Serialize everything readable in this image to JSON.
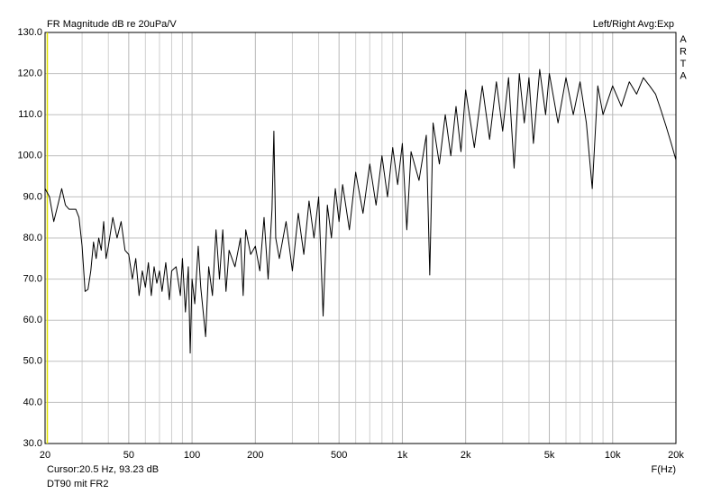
{
  "chart_data": {
    "type": "line",
    "title": "FR Magnitude dB re 20uPa/V",
    "mode_label": "Left/Right  Avg:Exp",
    "side_letters": [
      "A",
      "R",
      "T",
      "A"
    ],
    "cursor_text": "Cursor:20.5 Hz, 93.23 dB",
    "cursor_x": 20.5,
    "cursor_color": "#e0e000",
    "caption": "DT90 mit FR2",
    "x_label": "F(Hz)",
    "log_x": true,
    "grid": true,
    "color": "#000000",
    "xlim": [
      20,
      20000
    ],
    "ylim": [
      30,
      130
    ],
    "xticks": [
      20,
      50,
      100,
      200,
      500,
      {
        "value": 1000,
        "label": "1k"
      },
      {
        "value": 2000,
        "label": "2k"
      },
      {
        "value": 5000,
        "label": "5k"
      },
      {
        "value": 10000,
        "label": "10k"
      },
      {
        "value": 20000,
        "label": "20k"
      }
    ],
    "xgrid_minor": [
      30,
      40,
      60,
      70,
      80,
      90,
      300,
      400,
      600,
      700,
      800,
      900,
      3000,
      4000,
      6000,
      7000,
      8000,
      9000
    ],
    "yticks": [
      {
        "value": 30,
        "label": "30.0"
      },
      {
        "value": 40,
        "label": "40.0"
      },
      {
        "value": 50,
        "label": "50.0"
      },
      {
        "value": 60,
        "label": "60.0"
      },
      {
        "value": 70,
        "label": "70.0"
      },
      {
        "value": 80,
        "label": "80.0"
      },
      {
        "value": 90,
        "label": "90.0"
      },
      {
        "value": 100,
        "label": "100.0"
      },
      {
        "value": 110,
        "label": "110.0"
      },
      {
        "value": 120,
        "label": "120.0"
      },
      {
        "value": 130,
        "label": "130.0"
      }
    ],
    "x": [
      20,
      21,
      22,
      23,
      24,
      25,
      26,
      28,
      29,
      30,
      31,
      32,
      33,
      34,
      35,
      36,
      37,
      38,
      39,
      40,
      42,
      44,
      46,
      48,
      50,
      52,
      54,
      56,
      58,
      60,
      62,
      64,
      66,
      68,
      70,
      72,
      75,
      78,
      80,
      84,
      88,
      90,
      93,
      96,
      98,
      100,
      103,
      107,
      110,
      114,
      116,
      120,
      125,
      130,
      135,
      140,
      145,
      150,
      160,
      170,
      175,
      180,
      190,
      200,
      210,
      220,
      230,
      240,
      245,
      250,
      260,
      280,
      300,
      320,
      340,
      360,
      380,
      400,
      420,
      440,
      460,
      480,
      500,
      520,
      560,
      600,
      650,
      700,
      750,
      800,
      850,
      900,
      950,
      1000,
      1050,
      1100,
      1200,
      1300,
      1350,
      1400,
      1500,
      1600,
      1700,
      1800,
      1900,
      2000,
      2200,
      2400,
      2600,
      2800,
      3000,
      3200,
      3400,
      3600,
      3800,
      4000,
      4200,
      4500,
      4800,
      5000,
      5500,
      6000,
      6500,
      7000,
      7500,
      8000,
      8500,
      9000,
      10000,
      11000,
      12000,
      13000,
      14000,
      15000,
      16000,
      17000,
      18000,
      19000,
      20000
    ],
    "values": [
      92,
      90,
      84,
      88,
      92,
      88,
      87,
      87,
      85,
      78,
      67,
      67.5,
      72,
      79,
      75,
      80,
      77,
      84,
      75,
      78,
      85,
      80,
      84,
      77,
      76,
      70,
      75,
      66,
      72,
      68,
      74,
      66,
      73,
      69,
      72,
      67,
      74,
      65,
      72,
      73,
      66,
      75,
      62,
      73,
      52,
      70,
      64,
      78,
      68,
      60,
      56,
      73,
      66,
      82,
      70,
      82,
      67,
      77,
      73,
      80,
      66,
      82,
      76,
      78,
      72,
      85,
      70,
      87,
      106,
      80,
      75,
      84,
      72,
      86,
      76,
      89,
      80,
      90,
      61,
      88,
      80,
      92,
      84,
      93,
      82,
      96,
      86,
      98,
      88,
      100,
      90,
      102,
      93,
      103,
      82,
      101,
      94,
      105,
      71,
      108,
      98,
      110,
      100,
      112,
      101,
      116,
      102,
      117,
      104,
      118,
      106,
      119,
      97,
      120,
      108,
      119,
      103,
      121,
      110,
      120,
      108,
      119,
      110,
      118,
      108,
      92,
      117,
      110,
      117,
      112,
      118,
      115,
      119,
      117,
      115,
      111,
      107,
      103,
      99
    ]
  }
}
